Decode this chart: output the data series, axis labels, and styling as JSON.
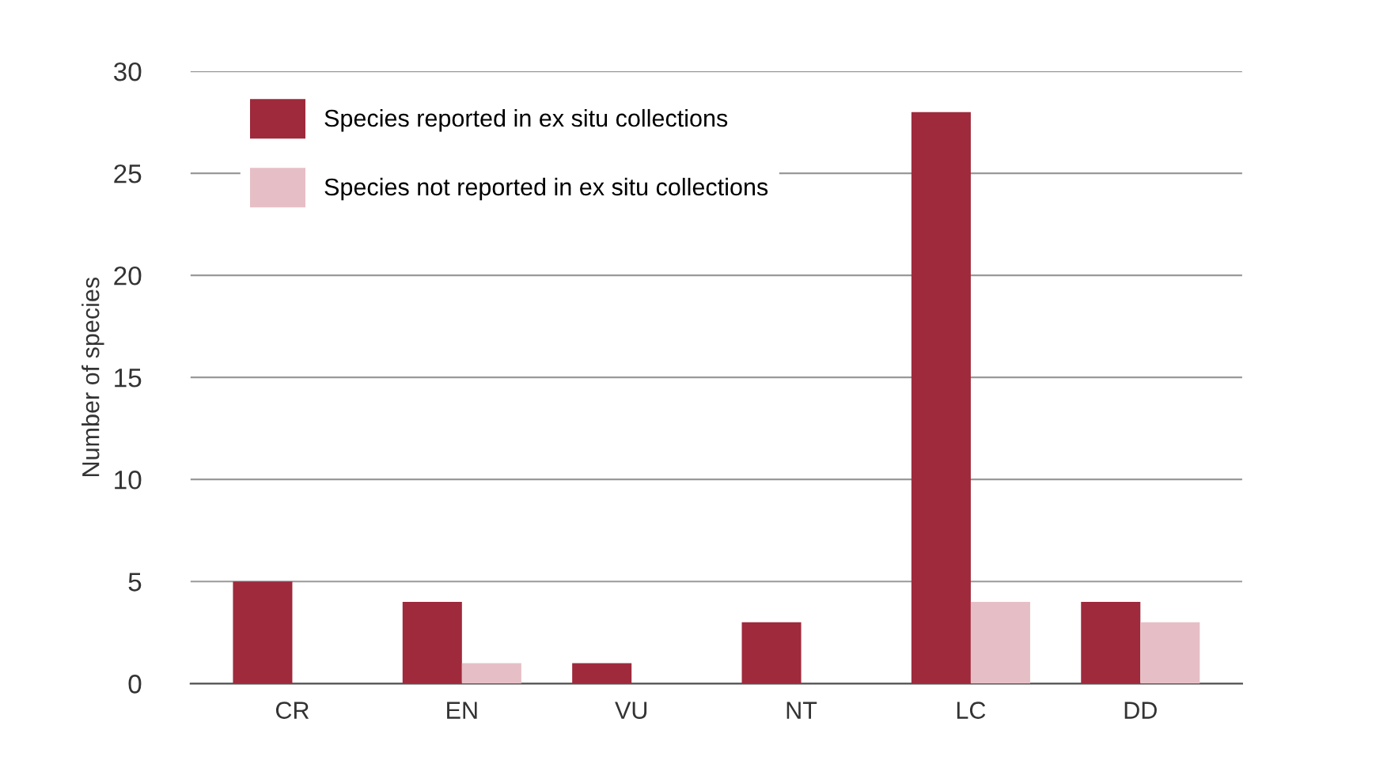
{
  "chart_data": {
    "type": "bar",
    "ylabel": "Number of species",
    "categories": [
      "CR",
      "EN",
      "VU",
      "NT",
      "LC",
      "DD"
    ],
    "series": [
      {
        "name": "Species reported in ex situ collections",
        "color": "#9e2a3c",
        "values": [
          5,
          4,
          1,
          3,
          28,
          4
        ]
      },
      {
        "name": "Species not reported in ex situ collections",
        "color": "#e6bfc6",
        "values": [
          0,
          1,
          0,
          0,
          4,
          3
        ]
      }
    ],
    "ylim": [
      0,
      30
    ],
    "yticks": [
      0,
      5,
      10,
      15,
      20,
      25,
      30
    ],
    "grid": "y",
    "legend": "top left"
  }
}
